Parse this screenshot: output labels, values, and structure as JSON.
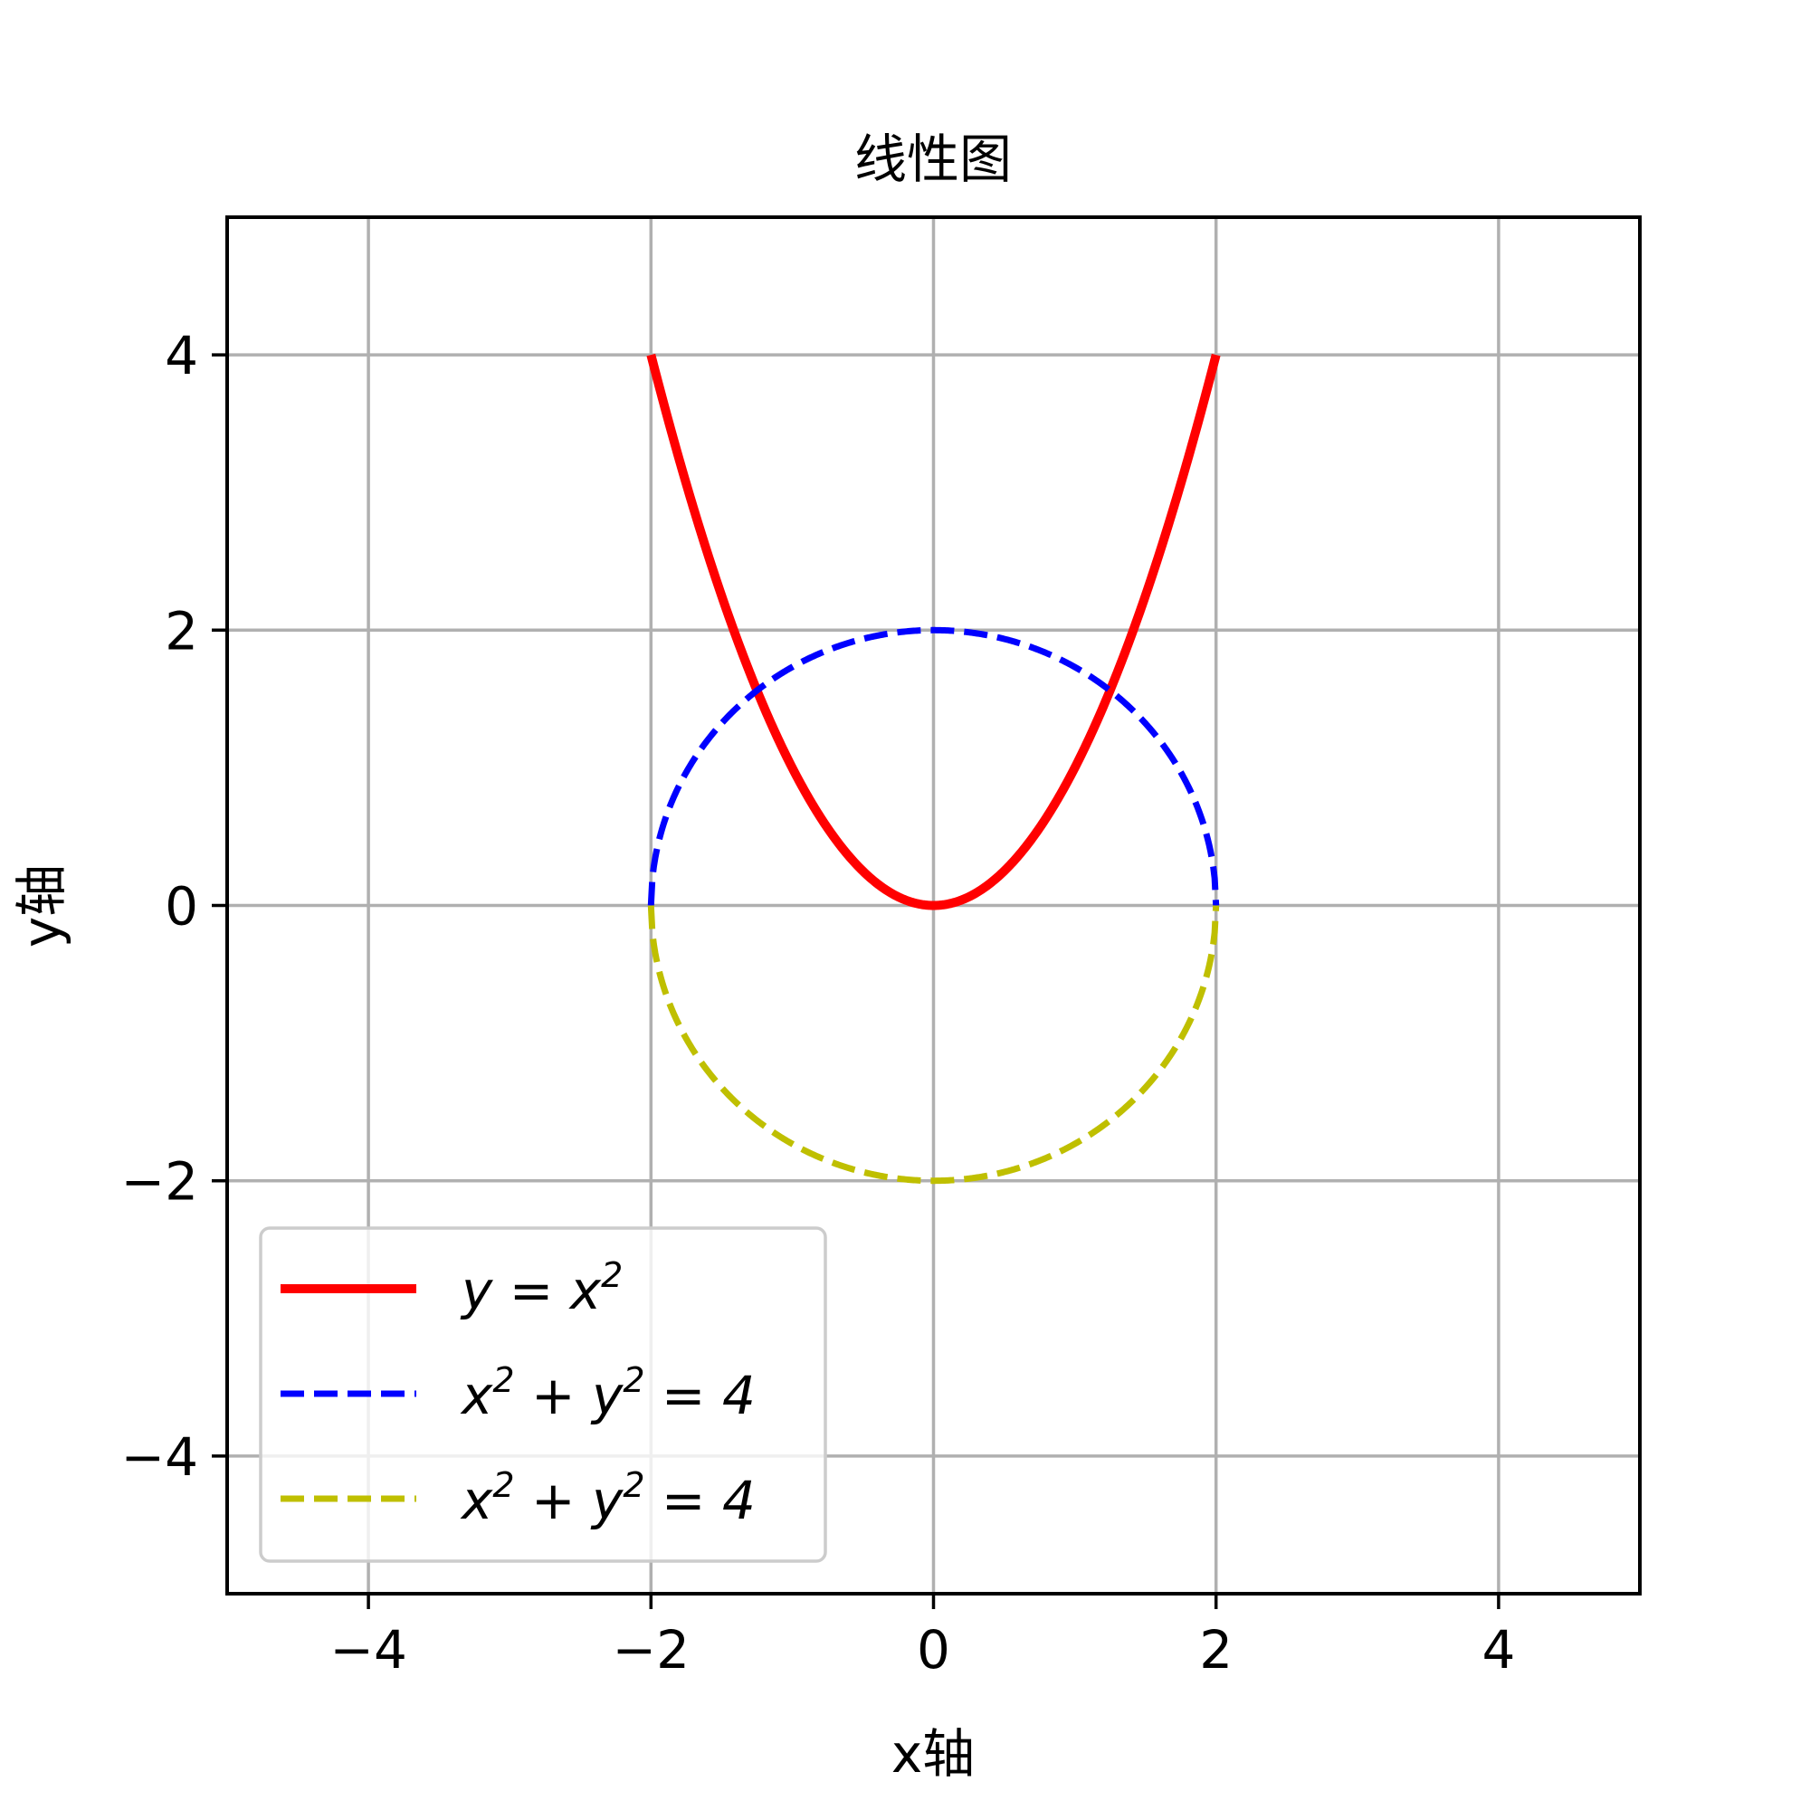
{
  "chart_data": {
    "type": "line",
    "title": "线性图",
    "xlabel": "x轴",
    "ylabel": "y轴",
    "xlim": [
      -5,
      5
    ],
    "ylim": [
      -5,
      5
    ],
    "grid": true,
    "legend_position": "lower-left",
    "x_ticks": [
      -4,
      -2,
      0,
      2,
      4
    ],
    "y_ticks": [
      -4,
      -2,
      0,
      2,
      4
    ],
    "x_tick_labels": [
      "−4",
      "−2",
      "0",
      "2",
      "4"
    ],
    "y_tick_labels": [
      "−4",
      "−2",
      "0",
      "2",
      "4"
    ],
    "series": [
      {
        "name": "y = x²",
        "legend": {
          "base": "y = x",
          "sup": "2",
          "tail": ""
        },
        "color": "#ff0000",
        "style": "solid",
        "function": "y = x^2",
        "x_range": [
          -2,
          2
        ]
      },
      {
        "name": "x² + y² = 4",
        "legend": {
          "a": "x",
          "sup1": "2",
          "mid": " + y",
          "sup2": "2",
          "tail": " = 4"
        },
        "color": "#0000ff",
        "style": "dashed",
        "function": "y = sqrt(4 - x^2)",
        "x_range": [
          -2,
          2
        ]
      },
      {
        "name": "x² + y² = 4",
        "legend": {
          "a": "x",
          "sup1": "2",
          "mid": " + y",
          "sup2": "2",
          "tail": " = 4"
        },
        "color": "#bfbf00",
        "style": "dashed",
        "function": "y = -sqrt(4 - x^2)",
        "x_range": [
          -2,
          2
        ]
      }
    ]
  }
}
